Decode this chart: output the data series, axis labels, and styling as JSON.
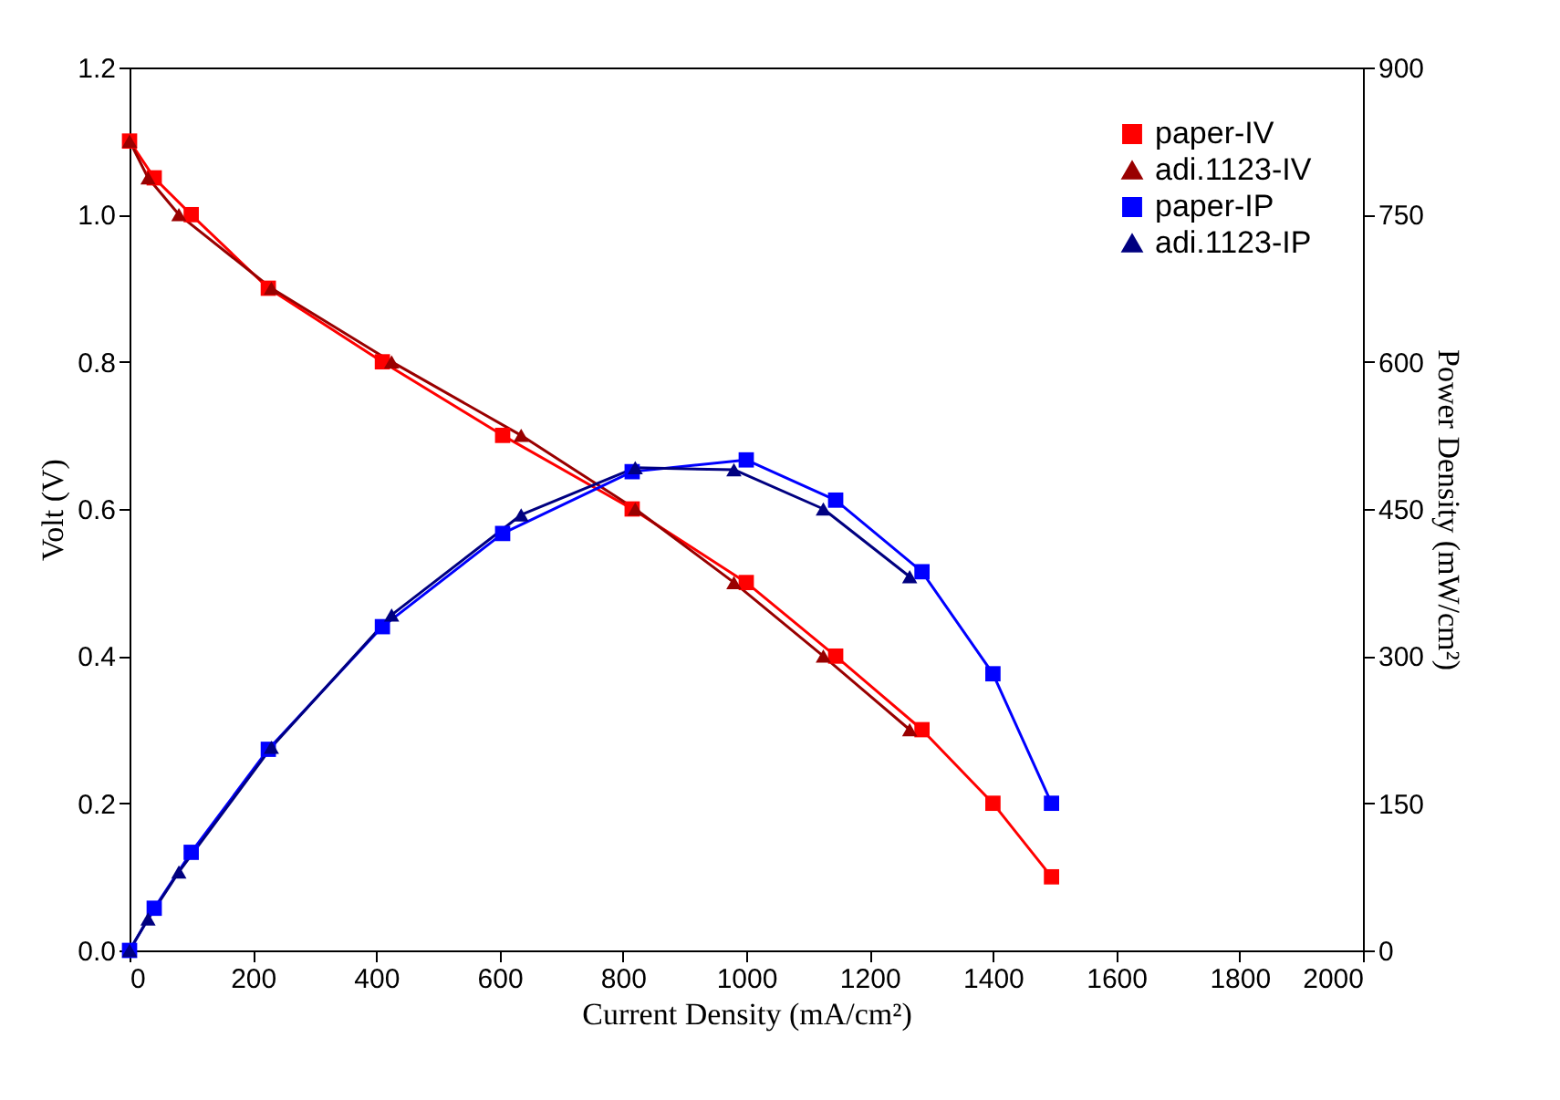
{
  "chart_data": {
    "type": "line",
    "xlabel": "Current Density (mA/cm²)",
    "ylabel": "Volt (V)",
    "y2label": "Power Density (mW/cm²)",
    "xlim": [
      0,
      2000
    ],
    "xticks": [
      0,
      200,
      400,
      600,
      800,
      1000,
      1200,
      1400,
      1600,
      1800,
      2000
    ],
    "ylim": [
      0,
      1.2
    ],
    "yticks": [
      {
        "value": 0,
        "label": "0.0"
      },
      {
        "value": 0.2,
        "label": "0.2"
      },
      {
        "value": 0.4,
        "label": "0.4"
      },
      {
        "value": 0.6,
        "label": "0.6"
      },
      {
        "value": 0.8,
        "label": "0.8"
      },
      {
        "value": 1.0,
        "label": "1.0"
      },
      {
        "value": 1.2,
        "label": "1.2"
      }
    ],
    "y2lim": [
      0,
      900
    ],
    "y2ticks": [
      0,
      150,
      300,
      450,
      600,
      750,
      900
    ],
    "grid": false,
    "legend": "top right",
    "line_style": "solid",
    "series": [
      {
        "name": "paper-IV",
        "color": "#ff0000",
        "marker": "square",
        "x": [
          0,
          40,
          100,
          225,
          410,
          605,
          815,
          1000,
          1145,
          1285,
          1400,
          1495
        ],
        "values": [
          1.1,
          1.05,
          1.0,
          0.9,
          0.8,
          0.7,
          0.6,
          0.5,
          0.4,
          0.3,
          0.2,
          0.1
        ]
      },
      {
        "name": "adi.1123-IV",
        "color": "#990000",
        "marker": "triangle",
        "x": [
          0,
          30,
          80,
          230,
          425,
          635,
          820,
          980,
          1125,
          1265
        ],
        "values": [
          1.1,
          1.05,
          1.0,
          0.9,
          0.8,
          0.7,
          0.6,
          0.5,
          0.4,
          0.3
        ]
      },
      {
        "name": "paper-IP",
        "color": "#0000ff",
        "marker": "square",
        "axis": "y2",
        "x": [
          0,
          40,
          100,
          225,
          410,
          605,
          815,
          1000,
          1145,
          1285,
          1400,
          1495
        ],
        "values": [
          0,
          43,
          100,
          205,
          330,
          425,
          488,
          500,
          459,
          386,
          282,
          150
        ]
      },
      {
        "name": "adi.1123-IP",
        "color": "#000080",
        "marker": "triangle",
        "axis": "y2",
        "x": [
          0,
          30,
          80,
          230,
          425,
          635,
          820,
          980,
          1125,
          1265
        ],
        "values": [
          0,
          32,
          80,
          207,
          342,
          444,
          492,
          490,
          450,
          381
        ]
      }
    ]
  }
}
